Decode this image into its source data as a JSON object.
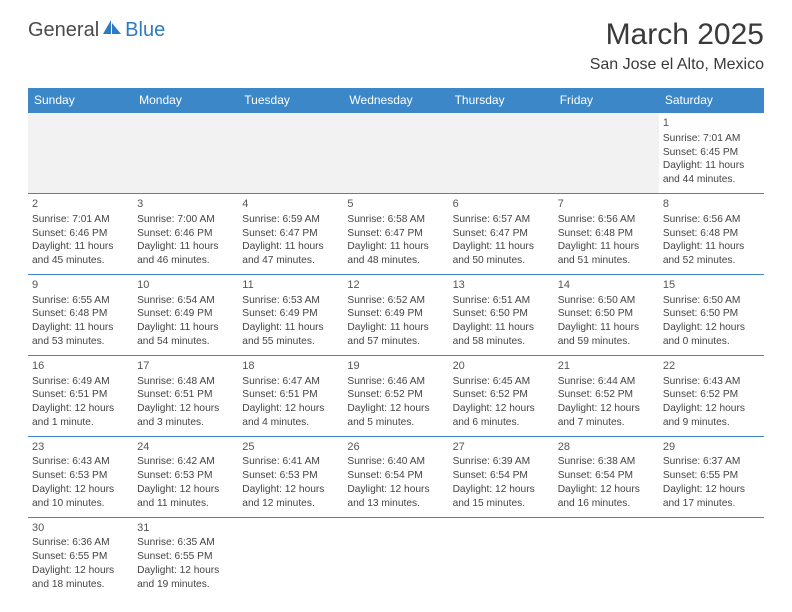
{
  "logo": {
    "part1": "General",
    "part2": "Blue"
  },
  "title": "March 2025",
  "location": "San Jose el Alto, Mexico",
  "colors": {
    "header_bg": "#3b87c8",
    "header_text": "#ffffff",
    "border": "#3b87c8",
    "text": "#444444",
    "empty_bg": "#f2f2f2"
  },
  "daynames": [
    "Sunday",
    "Monday",
    "Tuesday",
    "Wednesday",
    "Thursday",
    "Friday",
    "Saturday"
  ],
  "weeks": [
    [
      {
        "num": "",
        "sunrise": "",
        "sunset": "",
        "daylight": ""
      },
      {
        "num": "",
        "sunrise": "",
        "sunset": "",
        "daylight": ""
      },
      {
        "num": "",
        "sunrise": "",
        "sunset": "",
        "daylight": ""
      },
      {
        "num": "",
        "sunrise": "",
        "sunset": "",
        "daylight": ""
      },
      {
        "num": "",
        "sunrise": "",
        "sunset": "",
        "daylight": ""
      },
      {
        "num": "",
        "sunrise": "",
        "sunset": "",
        "daylight": ""
      },
      {
        "num": "1",
        "sunrise": "Sunrise: 7:01 AM",
        "sunset": "Sunset: 6:45 PM",
        "daylight": "Daylight: 11 hours and 44 minutes."
      }
    ],
    [
      {
        "num": "2",
        "sunrise": "Sunrise: 7:01 AM",
        "sunset": "Sunset: 6:46 PM",
        "daylight": "Daylight: 11 hours and 45 minutes."
      },
      {
        "num": "3",
        "sunrise": "Sunrise: 7:00 AM",
        "sunset": "Sunset: 6:46 PM",
        "daylight": "Daylight: 11 hours and 46 minutes."
      },
      {
        "num": "4",
        "sunrise": "Sunrise: 6:59 AM",
        "sunset": "Sunset: 6:47 PM",
        "daylight": "Daylight: 11 hours and 47 minutes."
      },
      {
        "num": "5",
        "sunrise": "Sunrise: 6:58 AM",
        "sunset": "Sunset: 6:47 PM",
        "daylight": "Daylight: 11 hours and 48 minutes."
      },
      {
        "num": "6",
        "sunrise": "Sunrise: 6:57 AM",
        "sunset": "Sunset: 6:47 PM",
        "daylight": "Daylight: 11 hours and 50 minutes."
      },
      {
        "num": "7",
        "sunrise": "Sunrise: 6:56 AM",
        "sunset": "Sunset: 6:48 PM",
        "daylight": "Daylight: 11 hours and 51 minutes."
      },
      {
        "num": "8",
        "sunrise": "Sunrise: 6:56 AM",
        "sunset": "Sunset: 6:48 PM",
        "daylight": "Daylight: 11 hours and 52 minutes."
      }
    ],
    [
      {
        "num": "9",
        "sunrise": "Sunrise: 6:55 AM",
        "sunset": "Sunset: 6:48 PM",
        "daylight": "Daylight: 11 hours and 53 minutes."
      },
      {
        "num": "10",
        "sunrise": "Sunrise: 6:54 AM",
        "sunset": "Sunset: 6:49 PM",
        "daylight": "Daylight: 11 hours and 54 minutes."
      },
      {
        "num": "11",
        "sunrise": "Sunrise: 6:53 AM",
        "sunset": "Sunset: 6:49 PM",
        "daylight": "Daylight: 11 hours and 55 minutes."
      },
      {
        "num": "12",
        "sunrise": "Sunrise: 6:52 AM",
        "sunset": "Sunset: 6:49 PM",
        "daylight": "Daylight: 11 hours and 57 minutes."
      },
      {
        "num": "13",
        "sunrise": "Sunrise: 6:51 AM",
        "sunset": "Sunset: 6:50 PM",
        "daylight": "Daylight: 11 hours and 58 minutes."
      },
      {
        "num": "14",
        "sunrise": "Sunrise: 6:50 AM",
        "sunset": "Sunset: 6:50 PM",
        "daylight": "Daylight: 11 hours and 59 minutes."
      },
      {
        "num": "15",
        "sunrise": "Sunrise: 6:50 AM",
        "sunset": "Sunset: 6:50 PM",
        "daylight": "Daylight: 12 hours and 0 minutes."
      }
    ],
    [
      {
        "num": "16",
        "sunrise": "Sunrise: 6:49 AM",
        "sunset": "Sunset: 6:51 PM",
        "daylight": "Daylight: 12 hours and 1 minute."
      },
      {
        "num": "17",
        "sunrise": "Sunrise: 6:48 AM",
        "sunset": "Sunset: 6:51 PM",
        "daylight": "Daylight: 12 hours and 3 minutes."
      },
      {
        "num": "18",
        "sunrise": "Sunrise: 6:47 AM",
        "sunset": "Sunset: 6:51 PM",
        "daylight": "Daylight: 12 hours and 4 minutes."
      },
      {
        "num": "19",
        "sunrise": "Sunrise: 6:46 AM",
        "sunset": "Sunset: 6:52 PM",
        "daylight": "Daylight: 12 hours and 5 minutes."
      },
      {
        "num": "20",
        "sunrise": "Sunrise: 6:45 AM",
        "sunset": "Sunset: 6:52 PM",
        "daylight": "Daylight: 12 hours and 6 minutes."
      },
      {
        "num": "21",
        "sunrise": "Sunrise: 6:44 AM",
        "sunset": "Sunset: 6:52 PM",
        "daylight": "Daylight: 12 hours and 7 minutes."
      },
      {
        "num": "22",
        "sunrise": "Sunrise: 6:43 AM",
        "sunset": "Sunset: 6:52 PM",
        "daylight": "Daylight: 12 hours and 9 minutes."
      }
    ],
    [
      {
        "num": "23",
        "sunrise": "Sunrise: 6:43 AM",
        "sunset": "Sunset: 6:53 PM",
        "daylight": "Daylight: 12 hours and 10 minutes."
      },
      {
        "num": "24",
        "sunrise": "Sunrise: 6:42 AM",
        "sunset": "Sunset: 6:53 PM",
        "daylight": "Daylight: 12 hours and 11 minutes."
      },
      {
        "num": "25",
        "sunrise": "Sunrise: 6:41 AM",
        "sunset": "Sunset: 6:53 PM",
        "daylight": "Daylight: 12 hours and 12 minutes."
      },
      {
        "num": "26",
        "sunrise": "Sunrise: 6:40 AM",
        "sunset": "Sunset: 6:54 PM",
        "daylight": "Daylight: 12 hours and 13 minutes."
      },
      {
        "num": "27",
        "sunrise": "Sunrise: 6:39 AM",
        "sunset": "Sunset: 6:54 PM",
        "daylight": "Daylight: 12 hours and 15 minutes."
      },
      {
        "num": "28",
        "sunrise": "Sunrise: 6:38 AM",
        "sunset": "Sunset: 6:54 PM",
        "daylight": "Daylight: 12 hours and 16 minutes."
      },
      {
        "num": "29",
        "sunrise": "Sunrise: 6:37 AM",
        "sunset": "Sunset: 6:55 PM",
        "daylight": "Daylight: 12 hours and 17 minutes."
      }
    ],
    [
      {
        "num": "30",
        "sunrise": "Sunrise: 6:36 AM",
        "sunset": "Sunset: 6:55 PM",
        "daylight": "Daylight: 12 hours and 18 minutes."
      },
      {
        "num": "31",
        "sunrise": "Sunrise: 6:35 AM",
        "sunset": "Sunset: 6:55 PM",
        "daylight": "Daylight: 12 hours and 19 minutes."
      },
      {
        "num": "",
        "sunrise": "",
        "sunset": "",
        "daylight": ""
      },
      {
        "num": "",
        "sunrise": "",
        "sunset": "",
        "daylight": ""
      },
      {
        "num": "",
        "sunrise": "",
        "sunset": "",
        "daylight": ""
      },
      {
        "num": "",
        "sunrise": "",
        "sunset": "",
        "daylight": ""
      },
      {
        "num": "",
        "sunrise": "",
        "sunset": "",
        "daylight": ""
      }
    ]
  ]
}
